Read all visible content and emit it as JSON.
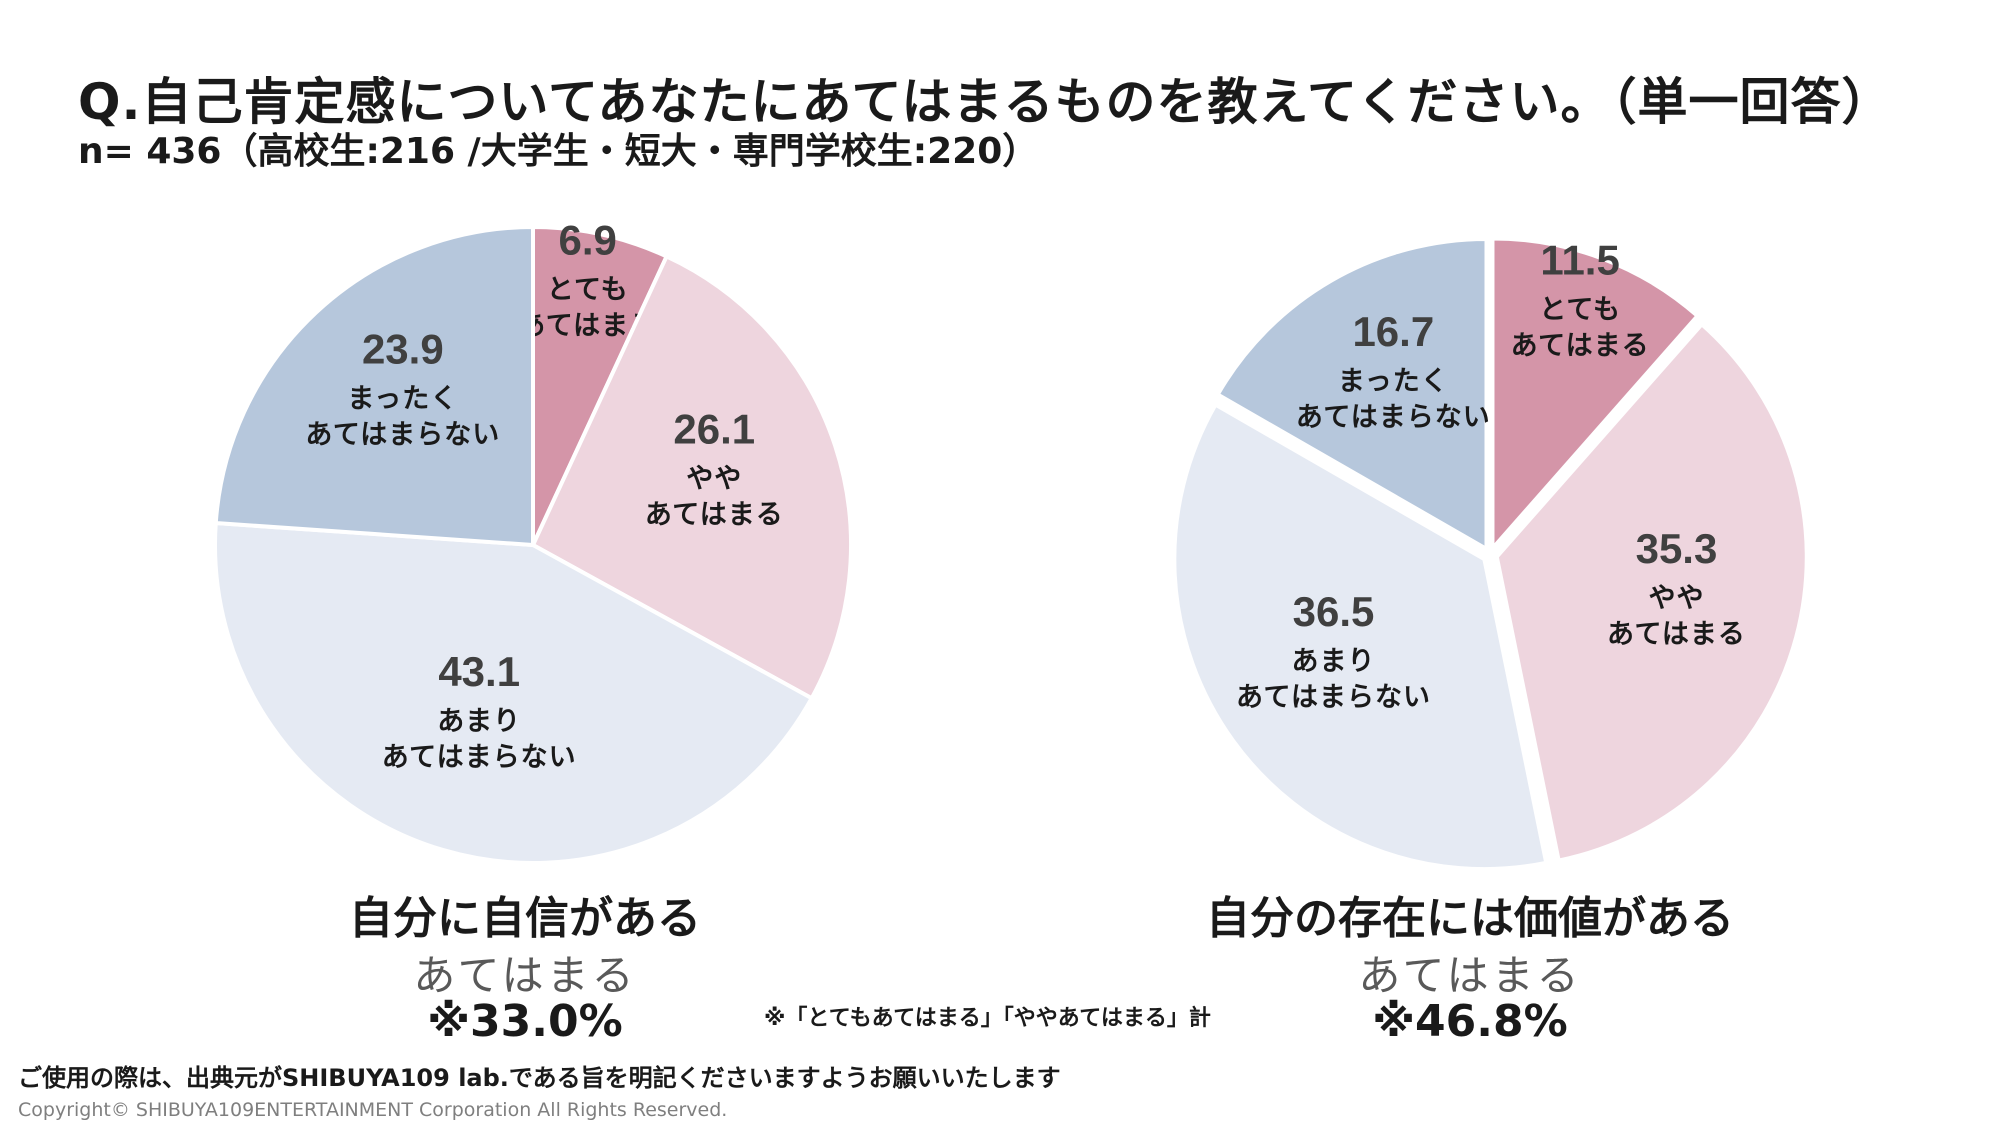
{
  "header": {
    "title": "Q.自己肯定感についてあなたにあてはまるものを教えてください。（単一回答）",
    "subtitle": "n= 436（高校生:216 /大学生・短大・専門学校生:220）"
  },
  "colors": {
    "very_applies": "#D495A8",
    "somewhat_applies": "#EED5DE",
    "not_really": "#E5EAF3",
    "not_at_all": "#B6C7DC",
    "value_text": "#404040",
    "label_text": "#1a1a1a"
  },
  "chart_data": [
    {
      "type": "pie",
      "title": "自分に自信がある",
      "slices": [
        {
          "label_lines": [
            "とても",
            "あてはまる"
          ],
          "value": 6.9,
          "value_text": "6.9"
        },
        {
          "label_lines": [
            "やや",
            "あてはまる"
          ],
          "value": 26.1,
          "value_text": "26.1"
        },
        {
          "label_lines": [
            "あまり",
            "あてはまらない"
          ],
          "value": 43.1,
          "value_text": "43.1"
        },
        {
          "label_lines": [
            "まったく",
            "あてはまらない"
          ],
          "value": 23.9,
          "value_text": "23.9"
        }
      ],
      "applies_label": "あてはまる",
      "applies_total": "※33.0%"
    },
    {
      "type": "pie",
      "title": "自分の存在には価値がある",
      "slices": [
        {
          "label_lines": [
            "とても",
            "あてはまる"
          ],
          "value": 11.5,
          "value_text": "11.5"
        },
        {
          "label_lines": [
            "やや",
            "あてはまる"
          ],
          "value": 35.3,
          "value_text": "35.3"
        },
        {
          "label_lines": [
            "あまり",
            "あてはまらない"
          ],
          "value": 36.5,
          "value_text": "36.5"
        },
        {
          "label_lines": [
            "まったく",
            "あてはまらない"
          ],
          "value": 16.7,
          "value_text": "16.7"
        }
      ],
      "applies_label": "あてはまる",
      "applies_total": "※46.8%"
    }
  ],
  "note": "※「とてもあてはまる」「ややあてはまる」計",
  "footer": {
    "usage_note": "ご使用の際は、出典元がSHIBUYA109 lab.である旨を明記くださいますようお願いいたします",
    "copyright": "Copyright© SHIBUYA109ENTERTAINMENT Corporation All Rights Reserved."
  }
}
